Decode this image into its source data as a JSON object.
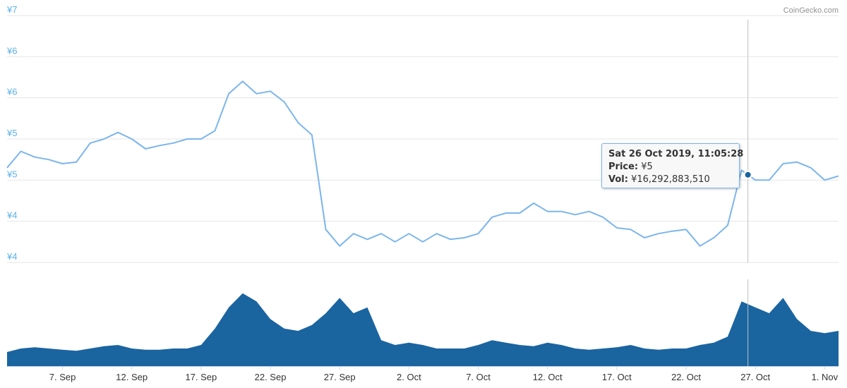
{
  "credit": "CoinGecko.com",
  "colors": {
    "price_line": "#7cb5ec",
    "volume_fill": "#1a64a0",
    "axis_text": "#5ab0e8",
    "grid": "#e6e6e6",
    "marker": "#1a64a0"
  },
  "tooltip": {
    "date": "Sat 26 Oct 2019, 11:05:28",
    "price_label": "Price:",
    "price_value": "¥5",
    "vol_label": "Vol:",
    "vol_value": "¥16,292,883,510"
  },
  "chart_data": {
    "type": "line",
    "title": "",
    "y_tick_labels": [
      "¥7",
      "¥6",
      "¥6",
      "¥5",
      "¥5",
      "¥4",
      "¥4"
    ],
    "y_tick_values": [
      7.0,
      6.5,
      6.0,
      5.5,
      5.0,
      4.5,
      4.0
    ],
    "ylim": [
      4.0,
      7.0
    ],
    "x_tick_labels": [
      "7. Sep",
      "12. Sep",
      "17. Sep",
      "22. Sep",
      "27. Sep",
      "2. Oct",
      "7. Oct",
      "12. Oct",
      "17. Oct",
      "22. Oct",
      "27. Oct",
      "1. Nov"
    ],
    "x_tick_dates": [
      "2019-09-07",
      "2019-09-12",
      "2019-09-17",
      "2019-09-22",
      "2019-09-27",
      "2019-10-02",
      "2019-10-07",
      "2019-10-12",
      "2019-10-17",
      "2019-10-22",
      "2019-10-27",
      "2019-11-01"
    ],
    "xlim": [
      "2019-09-03",
      "2019-11-02"
    ],
    "grid": true,
    "highlight_date": "2019-10-26T11:05:28",
    "series": [
      {
        "kind": "price",
        "x": [
          "2019-09-03",
          "2019-09-04",
          "2019-09-05",
          "2019-09-06",
          "2019-09-07",
          "2019-09-08",
          "2019-09-09",
          "2019-09-10",
          "2019-09-11",
          "2019-09-12",
          "2019-09-13",
          "2019-09-14",
          "2019-09-15",
          "2019-09-16",
          "2019-09-17",
          "2019-09-18",
          "2019-09-19",
          "2019-09-20",
          "2019-09-21",
          "2019-09-22",
          "2019-09-23",
          "2019-09-24",
          "2019-09-25",
          "2019-09-26",
          "2019-09-27",
          "2019-09-28",
          "2019-09-29",
          "2019-09-30",
          "2019-10-01",
          "2019-10-02",
          "2019-10-03",
          "2019-10-04",
          "2019-10-05",
          "2019-10-06",
          "2019-10-07",
          "2019-10-08",
          "2019-10-09",
          "2019-10-10",
          "2019-10-11",
          "2019-10-12",
          "2019-10-13",
          "2019-10-14",
          "2019-10-15",
          "2019-10-16",
          "2019-10-17",
          "2019-10-18",
          "2019-10-19",
          "2019-10-20",
          "2019-10-21",
          "2019-10-22",
          "2019-10-23",
          "2019-10-24",
          "2019-10-25",
          "2019-10-26",
          "2019-10-27",
          "2019-10-28",
          "2019-10-29",
          "2019-10-30",
          "2019-10-31",
          "2019-11-01",
          "2019-11-02"
        ],
        "y": [
          5.15,
          5.35,
          5.28,
          5.25,
          5.2,
          5.22,
          5.45,
          5.5,
          5.58,
          5.5,
          5.38,
          5.42,
          5.45,
          5.5,
          5.5,
          5.6,
          6.05,
          6.2,
          6.05,
          6.08,
          5.95,
          5.7,
          5.55,
          4.4,
          4.2,
          4.35,
          4.28,
          4.35,
          4.25,
          4.35,
          4.25,
          4.35,
          4.28,
          4.3,
          4.35,
          4.55,
          4.6,
          4.6,
          4.72,
          4.62,
          4.62,
          4.58,
          4.62,
          4.55,
          4.42,
          4.4,
          4.3,
          4.35,
          4.38,
          4.4,
          4.2,
          4.3,
          4.45,
          5.12,
          5.0,
          5.0,
          5.2,
          5.22,
          5.15,
          5.0,
          5.05
        ]
      },
      {
        "kind": "volume",
        "x": [
          "2019-09-03",
          "2019-09-04",
          "2019-09-05",
          "2019-09-06",
          "2019-09-07",
          "2019-09-08",
          "2019-09-09",
          "2019-09-10",
          "2019-09-11",
          "2019-09-12",
          "2019-09-13",
          "2019-09-14",
          "2019-09-15",
          "2019-09-16",
          "2019-09-17",
          "2019-09-18",
          "2019-09-19",
          "2019-09-20",
          "2019-09-21",
          "2019-09-22",
          "2019-09-23",
          "2019-09-24",
          "2019-09-25",
          "2019-09-26",
          "2019-09-27",
          "2019-09-28",
          "2019-09-29",
          "2019-09-30",
          "2019-10-01",
          "2019-10-02",
          "2019-10-03",
          "2019-10-04",
          "2019-10-05",
          "2019-10-06",
          "2019-10-07",
          "2019-10-08",
          "2019-10-09",
          "2019-10-10",
          "2019-10-11",
          "2019-10-12",
          "2019-10-13",
          "2019-10-14",
          "2019-10-15",
          "2019-10-16",
          "2019-10-17",
          "2019-10-18",
          "2019-10-19",
          "2019-10-20",
          "2019-10-21",
          "2019-10-22",
          "2019-10-23",
          "2019-10-24",
          "2019-10-25",
          "2019-10-26",
          "2019-10-27",
          "2019-10-28",
          "2019-10-29",
          "2019-10-30",
          "2019-10-31",
          "2019-11-01",
          "2019-11-02"
        ],
        "y": [
          0.12,
          0.15,
          0.16,
          0.15,
          0.14,
          0.13,
          0.15,
          0.17,
          0.18,
          0.15,
          0.14,
          0.14,
          0.15,
          0.15,
          0.18,
          0.32,
          0.5,
          0.62,
          0.55,
          0.4,
          0.32,
          0.3,
          0.35,
          0.45,
          0.58,
          0.45,
          0.5,
          0.22,
          0.18,
          0.2,
          0.18,
          0.15,
          0.15,
          0.15,
          0.18,
          0.22,
          0.2,
          0.18,
          0.17,
          0.2,
          0.18,
          0.15,
          0.14,
          0.15,
          0.16,
          0.18,
          0.15,
          0.14,
          0.15,
          0.15,
          0.18,
          0.2,
          0.25,
          0.55,
          0.5,
          0.45,
          0.58,
          0.4,
          0.3,
          0.28,
          0.3
        ]
      }
    ]
  }
}
